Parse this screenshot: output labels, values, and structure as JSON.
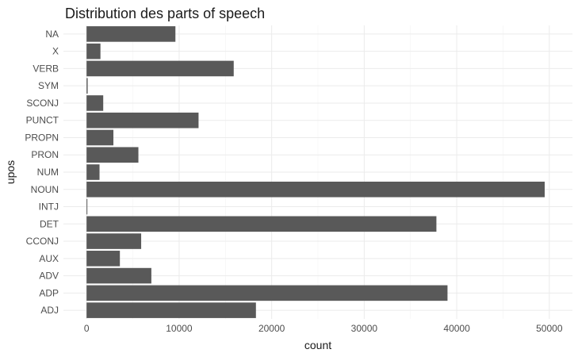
{
  "chart_data": {
    "type": "bar",
    "orientation": "horizontal",
    "title": "Distribution des parts of speech",
    "xlabel": "count",
    "ylabel": "upos",
    "categories": [
      "ADJ",
      "ADP",
      "ADV",
      "AUX",
      "CCONJ",
      "DET",
      "INTJ",
      "NOUN",
      "NUM",
      "PRON",
      "PROPN",
      "PUNCT",
      "SCONJ",
      "SYM",
      "VERB",
      "X",
      "NA"
    ],
    "values": [
      18300,
      39000,
      7000,
      3600,
      5900,
      37800,
      60,
      49500,
      1400,
      5600,
      2900,
      12100,
      1800,
      120,
      15900,
      1500,
      9600
    ],
    "xlim": [
      -2500,
      52500
    ],
    "xticks": [
      0,
      10000,
      20000,
      30000,
      40000,
      50000
    ],
    "xtick_labels": [
      "0",
      "10000",
      "20000",
      "30000",
      "40000",
      "50000"
    ],
    "grid": true,
    "bar_color": "#595959",
    "grid_color": "#ebebeb",
    "background": "#ffffff"
  }
}
